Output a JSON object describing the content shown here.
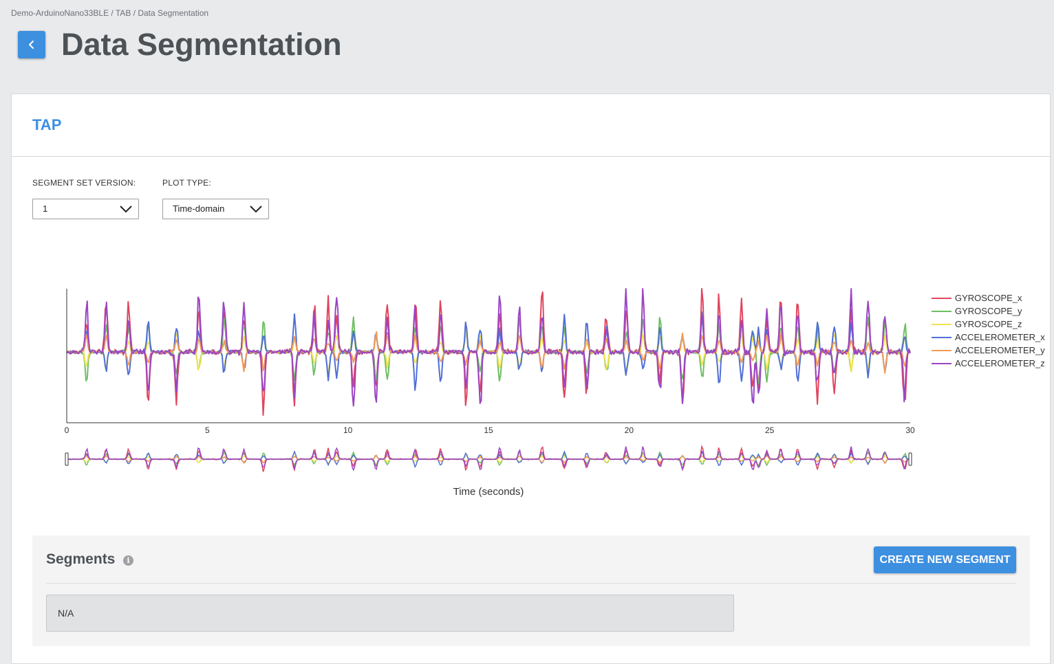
{
  "breadcrumb": "Demo-ArduinoNano33BLE / TAB / Data Segmentation",
  "page_title": "Data Segmentation",
  "card_title": "TAP",
  "segment_set_version": {
    "label": "SEGMENT SET VERSION:",
    "value": "1"
  },
  "plot_type": {
    "label": "PLOT TYPE:",
    "value": "Time-domain"
  },
  "colors": {
    "accent": "#3d8fe0"
  },
  "icons": {
    "back": "chevron-left-icon",
    "dropdown": "chevron-down-icon",
    "info": "info-icon"
  },
  "chart_data": {
    "type": "line",
    "xlabel": "Time (seconds)",
    "ylabel": "",
    "xlim": [
      0,
      30
    ],
    "x_ticks": [
      "0",
      "5",
      "10",
      "15",
      "20",
      "25",
      "30"
    ],
    "legend_position": "right",
    "has_range_navigator": true,
    "series": [
      {
        "name": "GYROSCOPE_x",
        "color": "#e0465f"
      },
      {
        "name": "GYROSCOPE_y",
        "color": "#6dbf63"
      },
      {
        "name": "GYROSCOPE_z",
        "color": "#f2e34c"
      },
      {
        "name": "ACCELEROMETER_x",
        "color": "#4f6fd6"
      },
      {
        "name": "ACCELEROMETER_y",
        "color": "#f29a55"
      },
      {
        "name": "ACCELEROMETER_z",
        "color": "#9b45c4"
      }
    ],
    "tap_times": [
      0.7,
      1.4,
      2.2,
      2.9,
      3.9,
      4.7,
      5.6,
      6.3,
      7.0,
      8.1,
      8.8,
      9.3,
      9.6,
      10.2,
      11.0,
      11.4,
      12.4,
      13.3,
      14.2,
      14.7,
      15.4,
      16.1,
      16.9,
      17.7,
      18.5,
      19.2,
      19.9,
      20.5,
      21.1,
      21.9,
      22.6,
      23.2,
      24.0,
      24.4,
      24.6,
      24.9,
      25.4,
      26.0,
      26.7,
      27.3,
      27.9,
      28.5,
      29.1,
      29.8
    ]
  },
  "segments": {
    "title": "Segments",
    "create_button": "CREATE NEW SEGMENT",
    "empty_value": "N/A"
  }
}
